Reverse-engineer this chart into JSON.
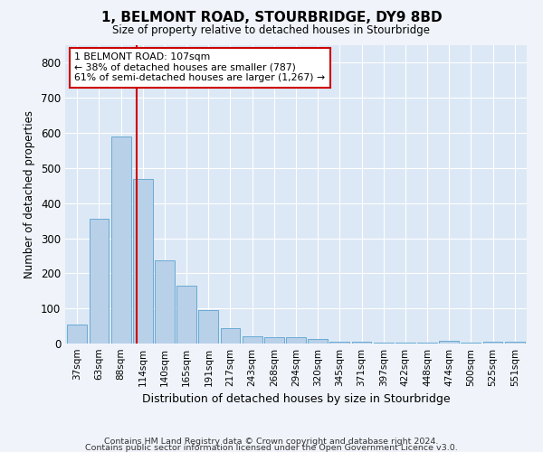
{
  "title": "1, BELMONT ROAD, STOURBRIDGE, DY9 8BD",
  "subtitle": "Size of property relative to detached houses in Stourbridge",
  "xlabel": "Distribution of detached houses by size in Stourbridge",
  "ylabel": "Number of detached properties",
  "bar_color": "#b8d0e8",
  "bar_edge_color": "#6aaad4",
  "background_color": "#dce8f5",
  "grid_color": "#ffffff",
  "fig_background": "#f0f4fa",
  "categories": [
    "37sqm",
    "63sqm",
    "88sqm",
    "114sqm",
    "140sqm",
    "165sqm",
    "191sqm",
    "217sqm",
    "243sqm",
    "268sqm",
    "294sqm",
    "320sqm",
    "345sqm",
    "371sqm",
    "397sqm",
    "422sqm",
    "448sqm",
    "474sqm",
    "500sqm",
    "525sqm",
    "551sqm"
  ],
  "values": [
    55,
    355,
    590,
    470,
    237,
    165,
    95,
    43,
    20,
    19,
    19,
    14,
    5,
    5,
    3,
    3,
    2,
    8,
    2,
    4,
    4
  ],
  "ylim": [
    0,
    850
  ],
  "yticks": [
    0,
    100,
    200,
    300,
    400,
    500,
    600,
    700,
    800
  ],
  "property_line_x": 2.73,
  "annotation_line1": "1 BELMONT ROAD: 107sqm",
  "annotation_line2": "← 38% of detached houses are smaller (787)",
  "annotation_line3": "61% of semi-detached houses are larger (1,267) →",
  "annotation_box_color": "#ffffff",
  "annotation_box_edge": "#cc0000",
  "property_line_color": "#cc0000",
  "footnote1": "Contains HM Land Registry data © Crown copyright and database right 2024.",
  "footnote2": "Contains public sector information licensed under the Open Government Licence v3.0."
}
